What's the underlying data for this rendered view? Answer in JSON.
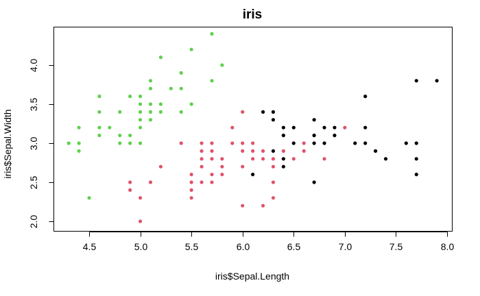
{
  "chart_data": {
    "type": "scatter",
    "title": "iris",
    "xlabel": "iris$Sepal.Length",
    "ylabel": "iris$Sepal.Width",
    "xlim": [
      4.3,
      8.0
    ],
    "ylim": [
      2.0,
      4.4
    ],
    "xticks": [
      "4.5",
      "5.0",
      "5.5",
      "6.0",
      "6.5",
      "7.0",
      "7.5",
      "8.0"
    ],
    "yticks": [
      "2.0",
      "2.5",
      "3.0",
      "3.5",
      "4.0"
    ],
    "grid": false,
    "legend": "none",
    "colors": {
      "group_1": "#61d04f",
      "group_2": "#df536b",
      "group_3": "#000000"
    },
    "series": [
      {
        "color_key": "group_1",
        "points": [
          [
            4.3,
            3.0
          ],
          [
            4.4,
            3.2
          ],
          [
            4.4,
            3.0
          ],
          [
            4.4,
            2.9
          ],
          [
            4.5,
            2.3
          ],
          [
            4.6,
            3.6
          ],
          [
            4.6,
            3.4
          ],
          [
            4.6,
            3.2
          ],
          [
            4.6,
            3.1
          ],
          [
            4.7,
            3.2
          ],
          [
            4.8,
            3.4
          ],
          [
            4.8,
            3.1
          ],
          [
            4.8,
            3.0
          ],
          [
            4.9,
            3.6
          ],
          [
            4.9,
            3.1
          ],
          [
            4.9,
            3.0
          ],
          [
            5.0,
            3.6
          ],
          [
            5.0,
            3.5
          ],
          [
            5.0,
            3.4
          ],
          [
            5.0,
            3.3
          ],
          [
            5.0,
            3.2
          ],
          [
            5.0,
            3.0
          ],
          [
            5.1,
            3.8
          ],
          [
            5.1,
            3.7
          ],
          [
            5.1,
            3.5
          ],
          [
            5.1,
            3.4
          ],
          [
            5.1,
            3.3
          ],
          [
            5.2,
            4.1
          ],
          [
            5.2,
            3.5
          ],
          [
            5.2,
            3.4
          ],
          [
            5.3,
            3.7
          ],
          [
            5.4,
            3.9
          ],
          [
            5.4,
            3.7
          ],
          [
            5.4,
            3.4
          ],
          [
            5.5,
            4.2
          ],
          [
            5.5,
            3.5
          ],
          [
            5.7,
            4.4
          ],
          [
            5.7,
            3.8
          ],
          [
            5.8,
            4.0
          ]
        ]
      },
      {
        "color_key": "group_2",
        "points": [
          [
            4.9,
            2.5
          ],
          [
            4.9,
            2.4
          ],
          [
            5.0,
            2.3
          ],
          [
            5.0,
            2.0
          ],
          [
            5.1,
            2.5
          ],
          [
            5.2,
            2.7
          ],
          [
            5.4,
            3.0
          ],
          [
            5.5,
            2.6
          ],
          [
            5.5,
            2.5
          ],
          [
            5.5,
            2.4
          ],
          [
            5.5,
            2.3
          ],
          [
            5.6,
            3.0
          ],
          [
            5.6,
            2.9
          ],
          [
            5.6,
            2.8
          ],
          [
            5.6,
            2.7
          ],
          [
            5.6,
            2.5
          ],
          [
            5.7,
            3.0
          ],
          [
            5.7,
            2.9
          ],
          [
            5.7,
            2.8
          ],
          [
            5.7,
            2.6
          ],
          [
            5.7,
            2.5
          ],
          [
            5.8,
            2.8
          ],
          [
            5.8,
            2.7
          ],
          [
            5.8,
            2.6
          ],
          [
            5.9,
            3.2
          ],
          [
            5.9,
            3.0
          ],
          [
            6.0,
            3.4
          ],
          [
            6.0,
            3.0
          ],
          [
            6.0,
            2.9
          ],
          [
            6.0,
            2.7
          ],
          [
            6.0,
            2.2
          ],
          [
            6.1,
            3.0
          ],
          [
            6.1,
            2.9
          ],
          [
            6.1,
            2.8
          ],
          [
            6.2,
            2.9
          ],
          [
            6.2,
            2.8
          ],
          [
            6.2,
            2.2
          ],
          [
            6.3,
            2.8
          ],
          [
            6.3,
            2.7
          ],
          [
            6.3,
            2.5
          ],
          [
            6.3,
            2.3
          ],
          [
            6.4,
            2.9
          ],
          [
            6.5,
            2.8
          ],
          [
            6.6,
            3.0
          ],
          [
            6.6,
            2.9
          ],
          [
            6.7,
            3.1
          ],
          [
            6.8,
            2.8
          ],
          [
            7.0,
            3.2
          ]
        ]
      },
      {
        "color_key": "group_3",
        "points": [
          [
            6.1,
            2.6
          ],
          [
            6.2,
            3.4
          ],
          [
            6.3,
            3.4
          ],
          [
            6.3,
            3.3
          ],
          [
            6.3,
            2.9
          ],
          [
            6.4,
            3.2
          ],
          [
            6.4,
            3.1
          ],
          [
            6.4,
            2.8
          ],
          [
            6.4,
            2.7
          ],
          [
            6.5,
            3.2
          ],
          [
            6.5,
            3.0
          ],
          [
            6.7,
            3.3
          ],
          [
            6.7,
            3.1
          ],
          [
            6.7,
            3.0
          ],
          [
            6.7,
            2.5
          ],
          [
            6.8,
            3.2
          ],
          [
            6.8,
            3.0
          ],
          [
            6.9,
            3.2
          ],
          [
            6.9,
            3.1
          ],
          [
            7.1,
            3.0
          ],
          [
            7.2,
            3.6
          ],
          [
            7.2,
            3.2
          ],
          [
            7.2,
            3.0
          ],
          [
            7.3,
            2.9
          ],
          [
            7.4,
            2.8
          ],
          [
            7.6,
            3.0
          ],
          [
            7.7,
            3.8
          ],
          [
            7.7,
            3.0
          ],
          [
            7.7,
            2.8
          ],
          [
            7.7,
            2.6
          ],
          [
            7.9,
            3.8
          ]
        ]
      }
    ]
  }
}
